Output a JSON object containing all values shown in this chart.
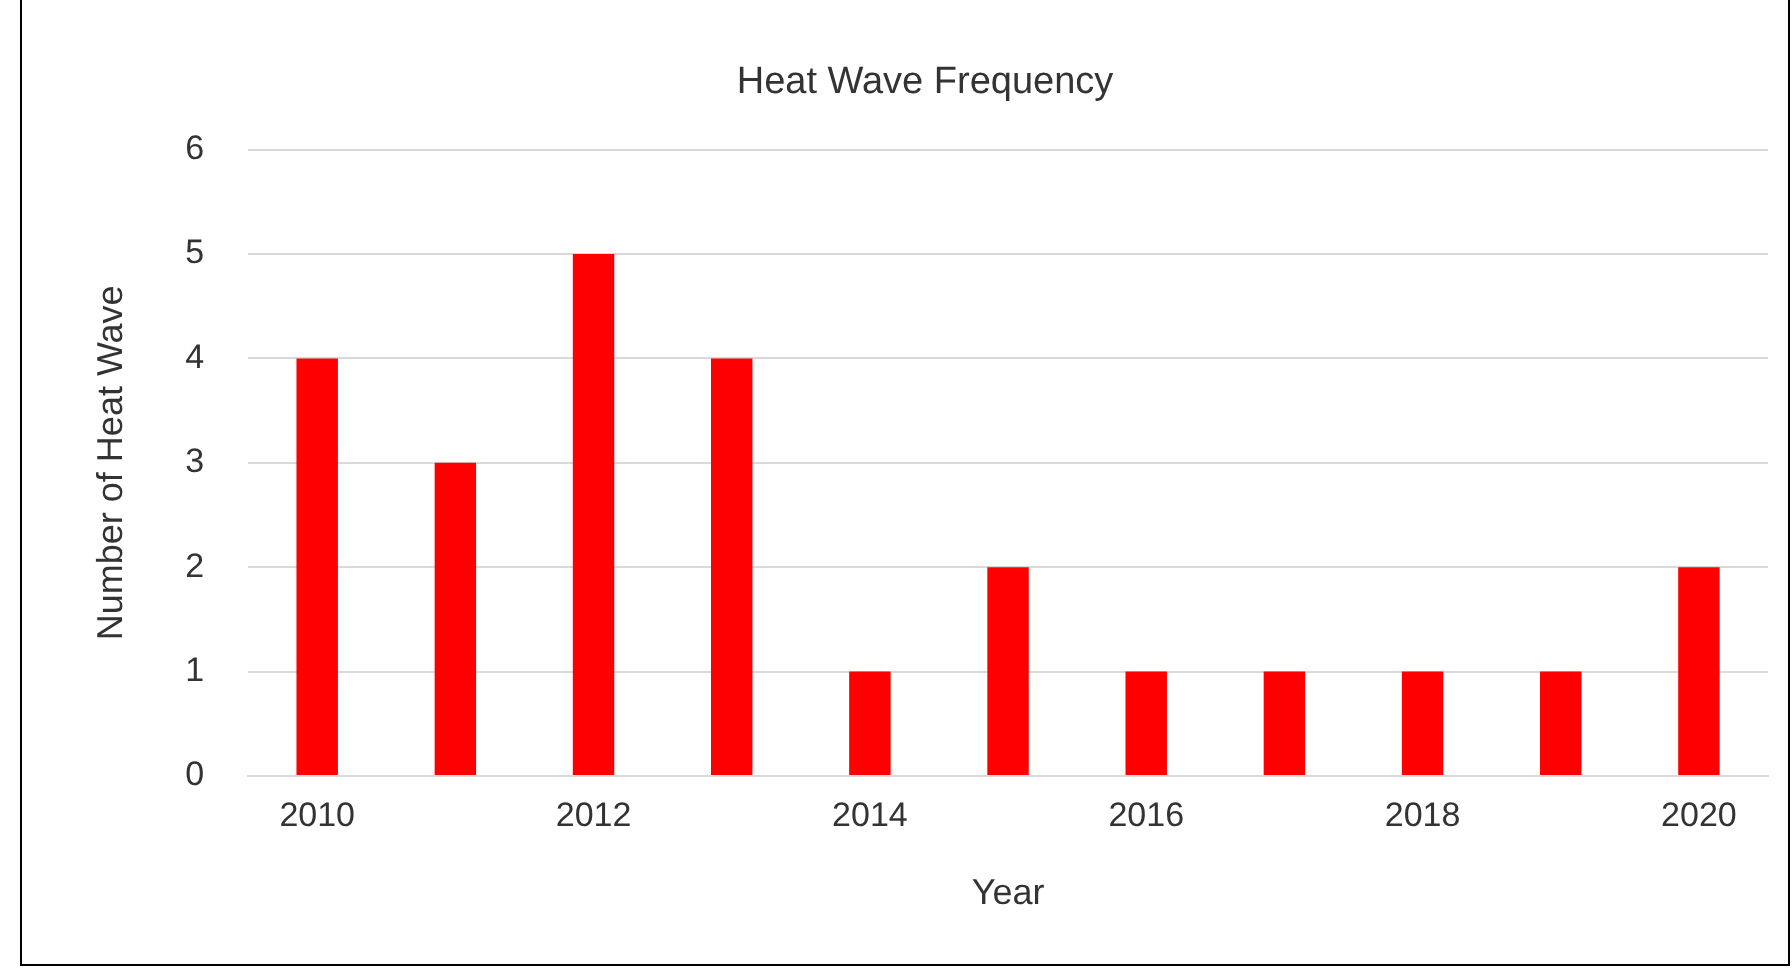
{
  "chart_data": {
    "type": "bar",
    "title": "Heat Wave Frequency",
    "xlabel": "Year",
    "ylabel": "Number of Heat Wave",
    "categories": [
      "2010",
      null,
      "2012",
      null,
      "2014",
      null,
      "2016",
      null,
      "2018",
      null,
      "2020"
    ],
    "values": [
      4,
      3,
      5,
      4,
      1,
      2,
      1,
      1,
      1,
      1,
      2
    ],
    "color": "#ff0000",
    "ylim": [
      0,
      6
    ],
    "yticks": [
      0,
      1,
      2,
      3,
      4,
      5,
      6
    ],
    "grid": "y",
    "legend": false
  }
}
